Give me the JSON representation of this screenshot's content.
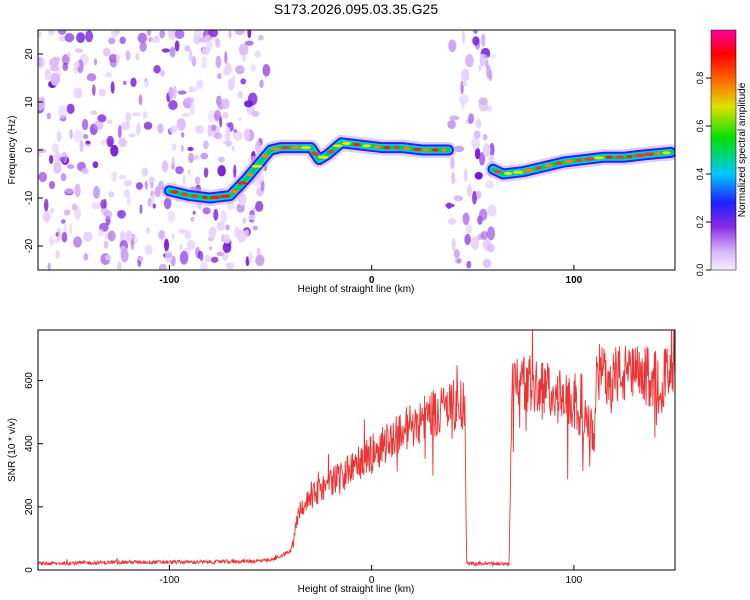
{
  "title": "S173.2026.095.03.35.G25",
  "colors": {
    "snr_line": "#ee3333",
    "axis": "#000000",
    "colorscale": [
      "#f8f0ff",
      "#d8b0f8",
      "#8a2be2",
      "#2020ff",
      "#00c8ff",
      "#00e000",
      "#e0e000",
      "#ff6000",
      "#ff0000",
      "#ff00a0"
    ]
  },
  "chart_data": [
    {
      "type": "heatmap",
      "title": "",
      "xlabel": "Height of straight line (km)",
      "ylabel": "Frequency (Hz)",
      "xlim": [
        -165,
        150
      ],
      "ylim": [
        -25,
        25
      ],
      "x_ticks": [
        -100,
        0,
        100
      ],
      "x_tick_labels": [
        "-100",
        "0",
        "100"
      ],
      "y_ticks": [
        -20,
        -10,
        0,
        10,
        20
      ],
      "y_tick_labels": [
        "-20",
        "-10",
        "0",
        "10",
        "20"
      ],
      "colorbar": {
        "label": "Normalized spectral amplitude",
        "range": [
          0,
          1
        ],
        "ticks": [
          0,
          0.2,
          0.4,
          0.6,
          0.8
        ],
        "tick_labels": [
          "0.0",
          "0.2",
          "0.4",
          "0.6",
          "0.8"
        ]
      },
      "noise_regions": [
        {
          "x_from": -165,
          "x_to": -52,
          "amplitude": 0.15
        },
        {
          "x_from": 38,
          "x_to": 60,
          "amplitude": 0.12
        }
      ],
      "ridge": {
        "x": [
          -100,
          -90,
          -80,
          -70,
          -62,
          -55,
          -50,
          -45,
          -40,
          -30,
          -26,
          -22,
          -15,
          -5,
          5,
          15,
          25,
          38,
          60,
          65,
          75,
          85,
          95,
          105,
          115,
          125,
          135,
          148
        ],
        "frequency": [
          -8.5,
          -9.5,
          -10,
          -9.5,
          -6,
          -2.5,
          0,
          0.5,
          0.5,
          0.5,
          -2,
          -1,
          1.5,
          1,
          0.5,
          0.5,
          0,
          0,
          -4,
          -5,
          -4.5,
          -3.5,
          -2.5,
          -2,
          -1.5,
          -1.5,
          -1,
          -0.5
        ]
      }
    },
    {
      "type": "line",
      "title": "",
      "xlabel": "Height of straight line (km)",
      "ylabel": "SNR (10 * v/v)",
      "xlim": [
        -165,
        150
      ],
      "ylim": [
        0,
        760
      ],
      "x_ticks": [
        -100,
        0,
        100
      ],
      "x_tick_labels": [
        "-100",
        "0",
        "100"
      ],
      "y_ticks": [
        0,
        200,
        400,
        600
      ],
      "y_tick_labels": [
        "0",
        "200",
        "400",
        "600"
      ],
      "series": [
        {
          "name": "SNR",
          "x": [
            -165,
            -120,
            -80,
            -50,
            -40,
            -36,
            -30,
            -20,
            -10,
            0,
            10,
            20,
            30,
            40,
            46,
            47,
            50,
            55,
            60,
            68,
            69,
            70,
            80,
            90,
            100,
            110,
            111,
            120,
            130,
            140,
            150
          ],
          "y": [
            20,
            25,
            25,
            30,
            60,
            190,
            230,
            280,
            320,
            370,
            420,
            460,
            500,
            520,
            520,
            20,
            20,
            20,
            20,
            20,
            480,
            600,
            590,
            560,
            520,
            430,
            620,
            620,
            615,
            610,
            610
          ]
        }
      ]
    }
  ]
}
